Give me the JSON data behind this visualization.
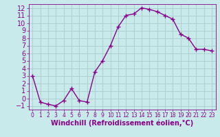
{
  "x": [
    0,
    1,
    2,
    3,
    4,
    5,
    6,
    7,
    8,
    9,
    10,
    11,
    12,
    13,
    14,
    15,
    16,
    17,
    18,
    19,
    20,
    21,
    22,
    23
  ],
  "y": [
    3.0,
    -0.5,
    -0.8,
    -1.0,
    -0.3,
    1.3,
    -0.3,
    -0.5,
    3.5,
    5.0,
    7.0,
    9.5,
    11.0,
    11.2,
    12.0,
    11.8,
    11.5,
    11.0,
    10.5,
    8.5,
    8.0,
    6.5,
    6.5,
    6.3
  ],
  "line_color": "#880088",
  "marker": "+",
  "marker_size": 4,
  "marker_lw": 1.0,
  "line_width": 1.0,
  "bg_color": "#c8eaea",
  "grid_color": "#aacccc",
  "xlabel": "Windchill (Refroidissement éolien,°C)",
  "xlabel_fontsize": 7,
  "tick_fontsize": 7,
  "xlim": [
    -0.5,
    23.5
  ],
  "ylim": [
    -1.5,
    12.5
  ],
  "yticks": [
    -1,
    0,
    1,
    2,
    3,
    4,
    5,
    6,
    7,
    8,
    9,
    10,
    11,
    12
  ],
  "xticks": [
    0,
    1,
    2,
    3,
    4,
    5,
    6,
    7,
    8,
    9,
    10,
    11,
    12,
    13,
    14,
    15,
    16,
    17,
    18,
    19,
    20,
    21,
    22,
    23
  ],
  "tick_color": "#880088",
  "label_color": "#880088",
  "spine_color": "#880088"
}
